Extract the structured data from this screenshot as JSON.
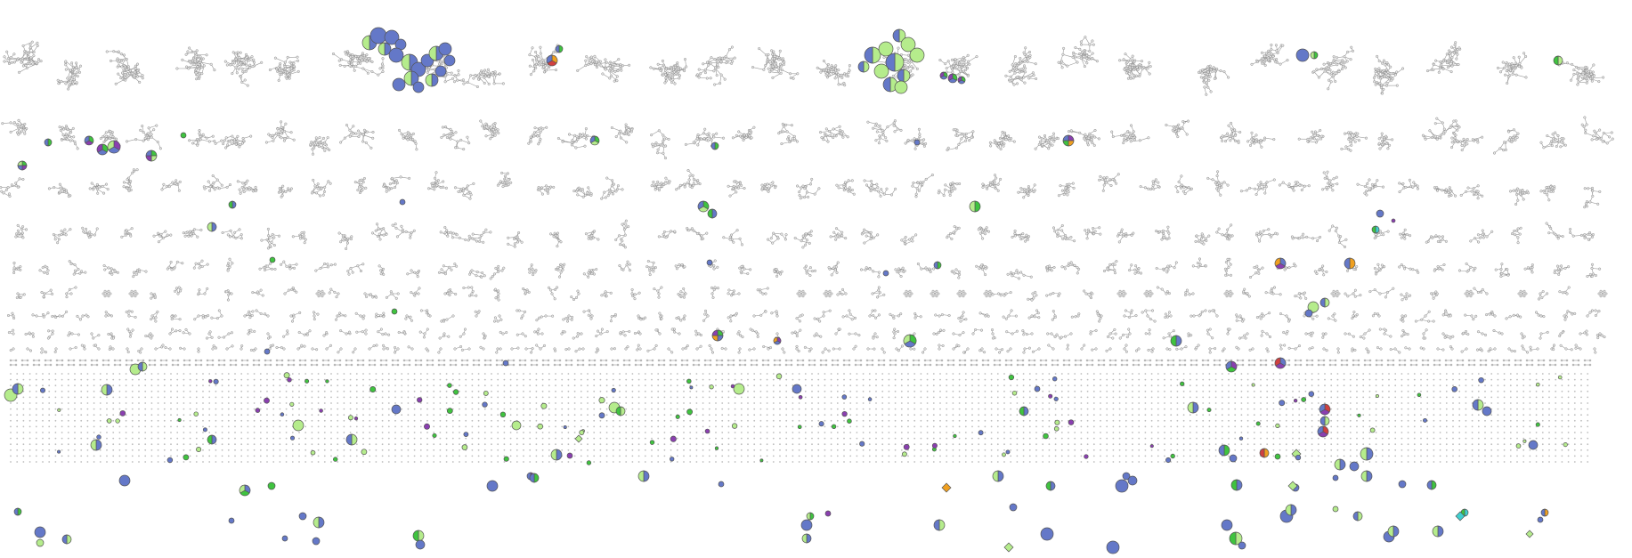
{
  "figure": {
    "kind": "molecular-network",
    "background": "#ffffff",
    "node_default_color": "#e6e6e6",
    "edge_color": "#9a9a9a",
    "palette": {
      "blue": "#6478c8",
      "lightgreen": "#b5ec8c",
      "green": "#3fc33f",
      "purple": "#8a3fb0",
      "orange": "#f0a020",
      "red": "#d04040",
      "cyan": "#40d0d0"
    }
  }
}
